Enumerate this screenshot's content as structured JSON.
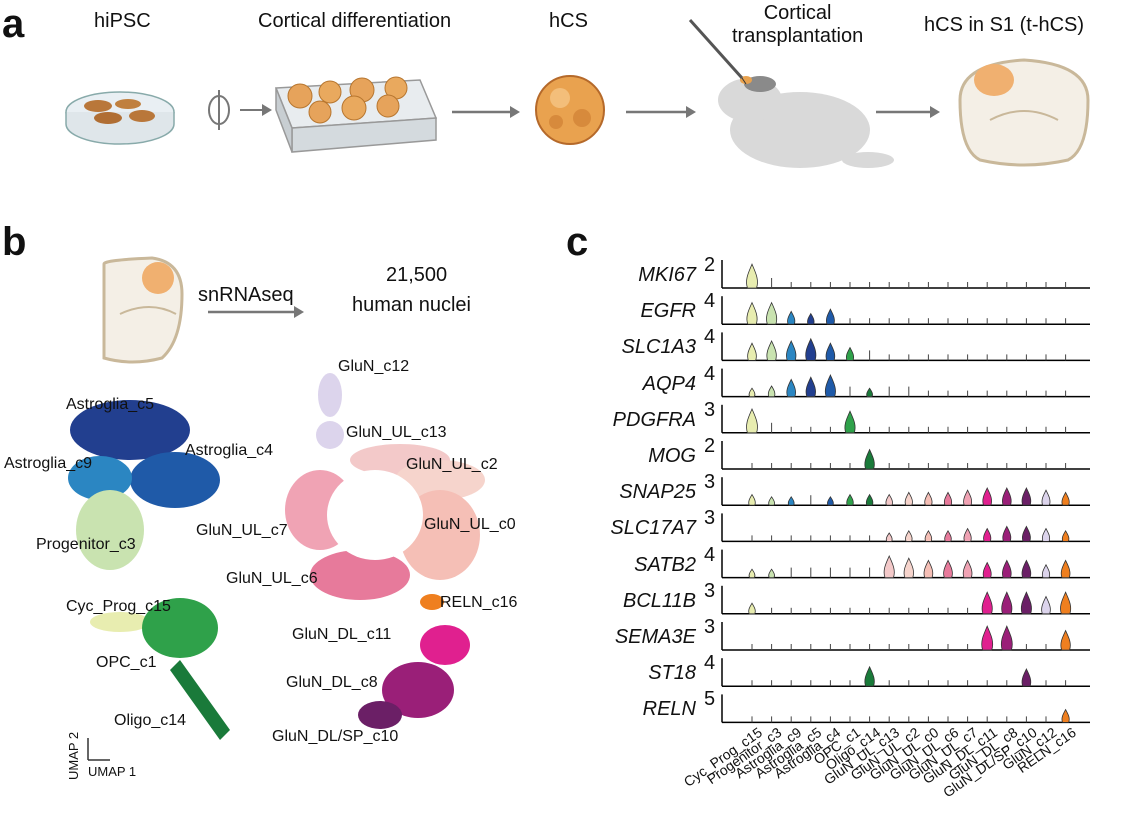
{
  "panel_a": {
    "letter": "a",
    "steps": [
      {
        "id": "hipsc",
        "label": "hiPSC"
      },
      {
        "id": "cortdiff",
        "label": "Cortical differentiation"
      },
      {
        "id": "hcs",
        "label": "hCS"
      },
      {
        "id": "transplant",
        "label": "Cortical\ntransplantation"
      },
      {
        "id": "thcs",
        "label": "hCS in S1 (t-hCS)"
      }
    ]
  },
  "panel_b": {
    "letter": "b",
    "method": "snRNAseq",
    "count": "21,500",
    "count_label": "human nuclei",
    "axis_x": "UMAP 1",
    "axis_y": "UMAP 2",
    "clusters": [
      {
        "name": "Astroglia_c5",
        "color": "#223f8f"
      },
      {
        "name": "Astroglia_c4",
        "color": "#1f5aa8"
      },
      {
        "name": "Astroglia_c9",
        "color": "#2b86c2"
      },
      {
        "name": "Progenitor_c3",
        "color": "#c9e3b0"
      },
      {
        "name": "Cyc_Prog_c15",
        "color": "#e8edb0"
      },
      {
        "name": "OPC_c1",
        "color": "#2fa14a"
      },
      {
        "name": "Oligo_c14",
        "color": "#1a7a3a"
      },
      {
        "name": "GluN_c12",
        "color": "#dcd4ec"
      },
      {
        "name": "GluN_UL_c13",
        "color": "#f3c9c9"
      },
      {
        "name": "GluN_UL_c2",
        "color": "#f6d4cc"
      },
      {
        "name": "GluN_UL_c7",
        "color": "#f0a3b4"
      },
      {
        "name": "GluN_UL_c0",
        "color": "#f5bfb6"
      },
      {
        "name": "GluN_UL_c6",
        "color": "#e77a9b"
      },
      {
        "name": "RELN_c16",
        "color": "#ef7f1f"
      },
      {
        "name": "GluN_DL_c11",
        "color": "#e0208f"
      },
      {
        "name": "GluN_DL_c8",
        "color": "#9a1f78"
      },
      {
        "name": "GluN_DL/SP_c10",
        "color": "#6b1f66"
      }
    ]
  },
  "panel_c": {
    "letter": "c",
    "genes": [
      {
        "name": "MKI67",
        "ymax": "2"
      },
      {
        "name": "EGFR",
        "ymax": "4"
      },
      {
        "name": "SLC1A3",
        "ymax": "4"
      },
      {
        "name": "AQP4",
        "ymax": "4"
      },
      {
        "name": "PDGFRA",
        "ymax": "3"
      },
      {
        "name": "MOG",
        "ymax": "2"
      },
      {
        "name": "SNAP25",
        "ymax": "3"
      },
      {
        "name": "SLC17A7",
        "ymax": "3"
      },
      {
        "name": "SATB2",
        "ymax": "4"
      },
      {
        "name": "BCL11B",
        "ymax": "3"
      },
      {
        "name": "SEMA3E",
        "ymax": "3"
      },
      {
        "name": "ST18",
        "ymax": "4"
      },
      {
        "name": "RELN",
        "ymax": "5"
      }
    ],
    "categories": [
      "Cyc_Prog_c15",
      "Progenitor_c3",
      "Astroglia_c9",
      "Astroglia_c5",
      "Astroglia_c4",
      "OPC_c1",
      "Oligo_c14",
      "GluN_UL_c13",
      "GluN_UL_c2",
      "GluN_UL_c0",
      "GluN_UL_c6",
      "GluN_UL_c7",
      "GluN_DL_c11",
      "GluN_DL_c8",
      "GluN_DL/SP_c10",
      "GluN_c12",
      "RELN_c16"
    ],
    "colors": [
      "#e8edb0",
      "#c9e3b0",
      "#2b86c2",
      "#223f8f",
      "#1f5aa8",
      "#2fa14a",
      "#1a7a3a",
      "#f3c9c9",
      "#f6d4cc",
      "#f5bfb6",
      "#e77a9b",
      "#f0a3b4",
      "#e0208f",
      "#9a1f78",
      "#6b1f66",
      "#dcd4ec",
      "#ef7f1f"
    ],
    "expression": [
      [
        0.9,
        0.1,
        0,
        0,
        0,
        0,
        0,
        0,
        0,
        0,
        0,
        0,
        0,
        0,
        0,
        0,
        0
      ],
      [
        0.8,
        0.8,
        0.4,
        0.3,
        0.5,
        0,
        0,
        0,
        0,
        0,
        0,
        0,
        0,
        0,
        0,
        0,
        0
      ],
      [
        0.6,
        0.7,
        0.7,
        0.8,
        0.6,
        0.4,
        0.1,
        0,
        0,
        0,
        0,
        0,
        0,
        0,
        0,
        0,
        0
      ],
      [
        0.2,
        0.3,
        0.6,
        0.7,
        0.8,
        0.1,
        0.2,
        0.1,
        0.1,
        0,
        0,
        0,
        0,
        0,
        0,
        0,
        0
      ],
      [
        0.9,
        0.1,
        0,
        0,
        0,
        0.8,
        0,
        0,
        0,
        0,
        0,
        0,
        0,
        0,
        0,
        0,
        0
      ],
      [
        0,
        0,
        0,
        0,
        0,
        0,
        0.7,
        0,
        0,
        0,
        0,
        0,
        0,
        0,
        0,
        0,
        0
      ],
      [
        0.3,
        0.2,
        0.2,
        0.1,
        0.2,
        0.3,
        0.3,
        0.3,
        0.4,
        0.4,
        0.4,
        0.5,
        0.6,
        0.6,
        0.6,
        0.5,
        0.4
      ],
      [
        0,
        0,
        0,
        0,
        0,
        0,
        0,
        0.2,
        0.3,
        0.3,
        0.3,
        0.4,
        0.4,
        0.5,
        0.5,
        0.4,
        0.3
      ],
      [
        0.2,
        0.2,
        0.1,
        0.1,
        0.1,
        0.1,
        0.1,
        0.8,
        0.7,
        0.6,
        0.6,
        0.6,
        0.5,
        0.6,
        0.6,
        0.4,
        0.6
      ],
      [
        0.3,
        0,
        0,
        0,
        0,
        0,
        0,
        0,
        0,
        0,
        0,
        0,
        0.8,
        0.8,
        0.8,
        0.6,
        0.8
      ],
      [
        0,
        0,
        0,
        0,
        0,
        0,
        0,
        0,
        0,
        0,
        0,
        0,
        0.9,
        0.9,
        0,
        0,
        0.7
      ],
      [
        0,
        0,
        0,
        0,
        0,
        0,
        0.7,
        0,
        0,
        0,
        0,
        0,
        0,
        0,
        0.6,
        0,
        0
      ],
      [
        0,
        0,
        0,
        0,
        0,
        0,
        0,
        0,
        0,
        0,
        0,
        0,
        0,
        0,
        0,
        0,
        0.4
      ]
    ]
  }
}
